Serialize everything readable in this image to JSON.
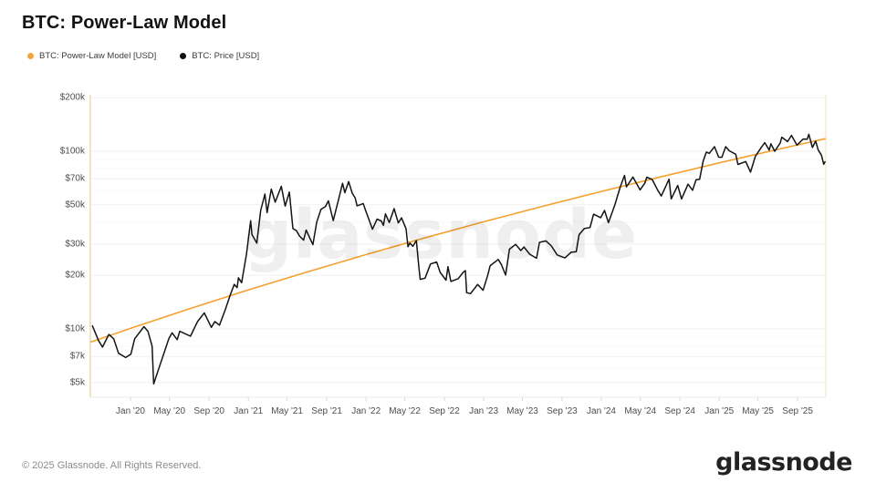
{
  "header": {
    "title": "BTC: Power-Law Model"
  },
  "legend": [
    {
      "label": "BTC: Power-Law Model [USD]",
      "color": "#f2a33c"
    },
    {
      "label": "BTC: Price [USD]",
      "color": "#111111"
    }
  ],
  "watermark": "glassnode",
  "footer": {
    "copyright": "© 2025 Glassnode. All Rights Reserved.",
    "brand": "glassnode"
  },
  "colors": {
    "model_line": "#f5a02e",
    "price_line": "#141414",
    "grid_major": "#f1f1f1",
    "grid_minor": "#f9f9f9",
    "axis_left": "#f2e3c5",
    "axis_right": "#f8efdd",
    "axis_bottom": "#e9e9e9",
    "tick_mark": "#d9d9d9"
  },
  "chart_data": {
    "type": "line",
    "title": "BTC: Power-Law Model",
    "y_axis": {
      "scale": "log",
      "ticks": [
        {
          "label": "$200k",
          "value": 200000
        },
        {
          "label": "$100k",
          "value": 100000
        },
        {
          "label": "$70k",
          "value": 70000
        },
        {
          "label": "$50k",
          "value": 50000
        },
        {
          "label": "$30k",
          "value": 30000
        },
        {
          "label": "$20k",
          "value": 20000
        },
        {
          "label": "$10k",
          "value": 10000
        },
        {
          "label": "$7k",
          "value": 7000
        },
        {
          "label": "$5k",
          "value": 5000
        }
      ],
      "minor_gridlines": [
        6000,
        8000,
        9000,
        40000,
        60000,
        80000,
        90000
      ],
      "range": [
        4300,
        215000
      ]
    },
    "x_axis": {
      "ticks": [
        {
          "label": "Jan '20",
          "date": "2020-01-01"
        },
        {
          "label": "May '20",
          "date": "2020-05-01"
        },
        {
          "label": "Sep '20",
          "date": "2020-09-01"
        },
        {
          "label": "Jan '21",
          "date": "2021-01-01"
        },
        {
          "label": "May '21",
          "date": "2021-05-01"
        },
        {
          "label": "Sep '21",
          "date": "2021-09-01"
        },
        {
          "label": "Jan '22",
          "date": "2022-01-01"
        },
        {
          "label": "May '22",
          "date": "2022-05-01"
        },
        {
          "label": "Sep '22",
          "date": "2022-09-01"
        },
        {
          "label": "Jan '23",
          "date": "2023-01-01"
        },
        {
          "label": "May '23",
          "date": "2023-05-01"
        },
        {
          "label": "Sep '23",
          "date": "2023-09-01"
        },
        {
          "label": "Jan '24",
          "date": "2024-01-01"
        },
        {
          "label": "May '24",
          "date": "2024-05-01"
        },
        {
          "label": "Sep '24",
          "date": "2024-09-01"
        },
        {
          "label": "Jan '25",
          "date": "2025-01-01"
        },
        {
          "label": "May '25",
          "date": "2025-05-01"
        },
        {
          "label": "Sep '25",
          "date": "2025-09-01"
        }
      ],
      "range": [
        "2019-08-28",
        "2025-11-28"
      ]
    },
    "series": [
      {
        "name": "BTC: Power-Law Model [USD]",
        "color": "#f5a02e",
        "width": 1.6,
        "points": [
          [
            "2019-09-01",
            8450
          ],
          [
            "2020-01-01",
            10070
          ],
          [
            "2020-07-01",
            12970
          ],
          [
            "2021-01-01",
            16600
          ],
          [
            "2021-07-01",
            20900
          ],
          [
            "2022-01-01",
            26200
          ],
          [
            "2022-07-01",
            32500
          ],
          [
            "2023-01-01",
            40100
          ],
          [
            "2023-07-01",
            48900
          ],
          [
            "2024-01-01",
            59400
          ],
          [
            "2024-07-01",
            71600
          ],
          [
            "2025-01-01",
            86100
          ],
          [
            "2025-07-01",
            102400
          ],
          [
            "2025-11-25",
            117500
          ]
        ]
      },
      {
        "name": "BTC: Price [USD]",
        "color": "#141414",
        "width": 1.5,
        "points": [
          [
            "2019-09-05",
            10400
          ],
          [
            "2019-09-24",
            8600
          ],
          [
            "2019-10-06",
            7900
          ],
          [
            "2019-10-26",
            9300
          ],
          [
            "2019-11-10",
            8800
          ],
          [
            "2019-11-25",
            7300
          ],
          [
            "2019-12-17",
            6900
          ],
          [
            "2020-01-02",
            7200
          ],
          [
            "2020-01-14",
            8800
          ],
          [
            "2020-02-12",
            10300
          ],
          [
            "2020-02-24",
            9700
          ],
          [
            "2020-03-08",
            8000
          ],
          [
            "2020-03-13",
            4900
          ],
          [
            "2020-03-29",
            6000
          ],
          [
            "2020-04-29",
            8800
          ],
          [
            "2020-05-09",
            9500
          ],
          [
            "2020-05-25",
            8700
          ],
          [
            "2020-06-02",
            9700
          ],
          [
            "2020-07-05",
            9100
          ],
          [
            "2020-07-27",
            11000
          ],
          [
            "2020-08-17",
            12300
          ],
          [
            "2020-09-08",
            10200
          ],
          [
            "2020-09-19",
            11000
          ],
          [
            "2020-10-03",
            10500
          ],
          [
            "2020-10-21",
            12800
          ],
          [
            "2020-11-06",
            15600
          ],
          [
            "2020-11-18",
            17800
          ],
          [
            "2020-11-27",
            17100
          ],
          [
            "2020-12-01",
            19400
          ],
          [
            "2020-12-11",
            18200
          ],
          [
            "2020-12-26",
            26300
          ],
          [
            "2021-01-08",
            40600
          ],
          [
            "2021-01-12",
            34000
          ],
          [
            "2021-01-27",
            30400
          ],
          [
            "2021-02-08",
            46400
          ],
          [
            "2021-02-21",
            57400
          ],
          [
            "2021-02-28",
            45100
          ],
          [
            "2021-03-13",
            61200
          ],
          [
            "2021-03-25",
            51700
          ],
          [
            "2021-04-13",
            63500
          ],
          [
            "2021-04-25",
            49100
          ],
          [
            "2021-05-08",
            58900
          ],
          [
            "2021-05-19",
            36700
          ],
          [
            "2021-05-30",
            35700
          ],
          [
            "2021-06-08",
            33400
          ],
          [
            "2021-06-21",
            31600
          ],
          [
            "2021-06-29",
            36000
          ],
          [
            "2021-07-20",
            29800
          ],
          [
            "2021-08-01",
            39900
          ],
          [
            "2021-08-14",
            47000
          ],
          [
            "2021-08-28",
            48900
          ],
          [
            "2021-09-06",
            52600
          ],
          [
            "2021-09-21",
            40700
          ],
          [
            "2021-10-08",
            53900
          ],
          [
            "2021-10-20",
            66000
          ],
          [
            "2021-10-27",
            58400
          ],
          [
            "2021-11-08",
            67500
          ],
          [
            "2021-11-19",
            58100
          ],
          [
            "2021-11-28",
            54700
          ],
          [
            "2021-12-04",
            49300
          ],
          [
            "2021-12-23",
            50800
          ],
          [
            "2021-12-31",
            46200
          ],
          [
            "2022-01-21",
            36400
          ],
          [
            "2022-02-04",
            41500
          ],
          [
            "2022-02-17",
            40500
          ],
          [
            "2022-02-24",
            38300
          ],
          [
            "2022-03-02",
            44400
          ],
          [
            "2022-03-14",
            39700
          ],
          [
            "2022-03-29",
            47500
          ],
          [
            "2022-04-11",
            39500
          ],
          [
            "2022-04-21",
            42200
          ],
          [
            "2022-05-05",
            36600
          ],
          [
            "2022-05-11",
            29000
          ],
          [
            "2022-05-17",
            30400
          ],
          [
            "2022-05-26",
            29200
          ],
          [
            "2022-06-06",
            31400
          ],
          [
            "2022-06-14",
            22100
          ],
          [
            "2022-06-18",
            19000
          ],
          [
            "2022-07-03",
            19300
          ],
          [
            "2022-07-20",
            23200
          ],
          [
            "2022-08-08",
            23800
          ],
          [
            "2022-08-19",
            20800
          ],
          [
            "2022-09-06",
            18800
          ],
          [
            "2022-09-12",
            22400
          ],
          [
            "2022-09-21",
            18500
          ],
          [
            "2022-10-14",
            19200
          ],
          [
            "2022-10-29",
            20800
          ],
          [
            "2022-11-05",
            21300
          ],
          [
            "2022-11-09",
            16000
          ],
          [
            "2022-11-21",
            15800
          ],
          [
            "2022-12-13",
            17800
          ],
          [
            "2022-12-30",
            16500
          ],
          [
            "2023-01-13",
            19900
          ],
          [
            "2023-01-21",
            22700
          ],
          [
            "2023-02-15",
            24600
          ],
          [
            "2023-02-25",
            23000
          ],
          [
            "2023-03-10",
            20100
          ],
          [
            "2023-03-22",
            28100
          ],
          [
            "2023-04-10",
            29900
          ],
          [
            "2023-04-26",
            27600
          ],
          [
            "2023-05-06",
            28900
          ],
          [
            "2023-05-24",
            26300
          ],
          [
            "2023-06-14",
            25000
          ],
          [
            "2023-06-23",
            30700
          ],
          [
            "2023-07-13",
            31300
          ],
          [
            "2023-07-30",
            29300
          ],
          [
            "2023-08-17",
            26100
          ],
          [
            "2023-09-10",
            25100
          ],
          [
            "2023-09-29",
            27000
          ],
          [
            "2023-10-15",
            27200
          ],
          [
            "2023-10-24",
            33900
          ],
          [
            "2023-11-09",
            36700
          ],
          [
            "2023-11-27",
            37200
          ],
          [
            "2023-12-08",
            44200
          ],
          [
            "2023-12-30",
            42300
          ],
          [
            "2024-01-11",
            46400
          ],
          [
            "2024-01-23",
            39600
          ],
          [
            "2024-02-12",
            49900
          ],
          [
            "2024-02-28",
            62400
          ],
          [
            "2024-03-13",
            73100
          ],
          [
            "2024-03-19",
            63000
          ],
          [
            "2024-04-08",
            71600
          ],
          [
            "2024-04-30",
            60600
          ],
          [
            "2024-05-15",
            66200
          ],
          [
            "2024-05-21",
            71400
          ],
          [
            "2024-06-07",
            69300
          ],
          [
            "2024-06-24",
            60300
          ],
          [
            "2024-07-05",
            56000
          ],
          [
            "2024-07-29",
            69600
          ],
          [
            "2024-08-05",
            53900
          ],
          [
            "2024-08-25",
            64200
          ],
          [
            "2024-09-06",
            53900
          ],
          [
            "2024-09-26",
            65200
          ],
          [
            "2024-10-10",
            60300
          ],
          [
            "2024-10-21",
            69000
          ],
          [
            "2024-11-01",
            69500
          ],
          [
            "2024-11-12",
            88000
          ],
          [
            "2024-11-22",
            99000
          ],
          [
            "2024-12-01",
            97300
          ],
          [
            "2024-12-17",
            106100
          ],
          [
            "2024-12-30",
            92600
          ],
          [
            "2025-01-09",
            92500
          ],
          [
            "2025-01-21",
            106100
          ],
          [
            "2025-02-01",
            100600
          ],
          [
            "2025-02-21",
            96200
          ],
          [
            "2025-02-28",
            84300
          ],
          [
            "2025-03-24",
            87500
          ],
          [
            "2025-04-08",
            76300
          ],
          [
            "2025-04-23",
            93700
          ],
          [
            "2025-05-10",
            104100
          ],
          [
            "2025-05-22",
            111700
          ],
          [
            "2025-06-05",
            101600
          ],
          [
            "2025-06-10",
            110200
          ],
          [
            "2025-06-22",
            100000
          ],
          [
            "2025-07-09",
            111300
          ],
          [
            "2025-07-14",
            120000
          ],
          [
            "2025-08-01",
            113400
          ],
          [
            "2025-08-13",
            122800
          ],
          [
            "2025-08-30",
            108200
          ],
          [
            "2025-09-18",
            117100
          ],
          [
            "2025-10-01",
            117000
          ],
          [
            "2025-10-06",
            124500
          ],
          [
            "2025-10-17",
            104900
          ],
          [
            "2025-10-27",
            114000
          ],
          [
            "2025-11-04",
            101500
          ],
          [
            "2025-11-14",
            95000
          ],
          [
            "2025-11-21",
            84500
          ],
          [
            "2025-11-25",
            87300
          ]
        ]
      }
    ]
  }
}
